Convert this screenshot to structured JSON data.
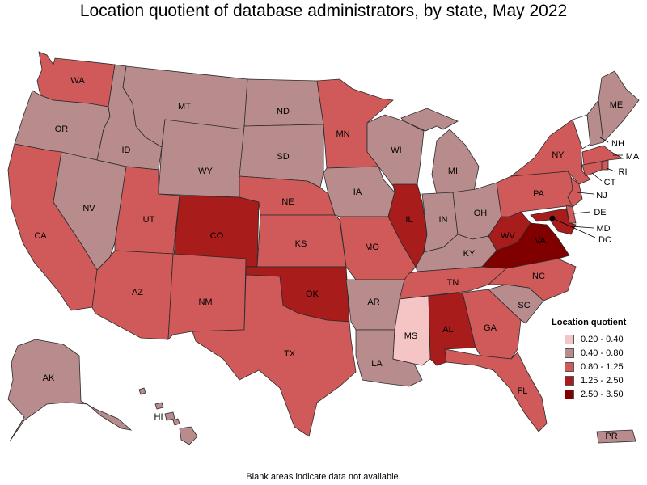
{
  "title": "Location quotient of database administrators, by state, May 2022",
  "footnote": "Blank areas indicate data not available.",
  "legend": {
    "title": "Location quotient",
    "items": [
      {
        "label": "0.20 - 0.40",
        "color": "#f5c4c4"
      },
      {
        "label": "0.40 - 0.80",
        "color": "#b88c8c"
      },
      {
        "label": "0.80 - 1.25",
        "color": "#d05a5a"
      },
      {
        "label": "1.25 - 2.50",
        "color": "#a81c1c"
      },
      {
        "label": "2.50 - 3.50",
        "color": "#800000"
      }
    ]
  },
  "colors": {
    "c1": "#f5c4c4",
    "c2": "#b88c8c",
    "c3": "#d05a5a",
    "c4": "#a81c1c",
    "c5": "#800000",
    "blank": "#ffffff"
  },
  "states": {
    "WA": "c3",
    "OR": "c2",
    "CA": "c3",
    "NV": "c2",
    "ID": "c2",
    "MT": "c2",
    "WY": "c2",
    "UT": "c3",
    "AZ": "c3",
    "CO": "c4",
    "NM": "c3",
    "ND": "c2",
    "SD": "c2",
    "NE": "c3",
    "KS": "c3",
    "OK": "c4",
    "TX": "c3",
    "MN": "c3",
    "IA": "c2",
    "MO": "c3",
    "AR": "c2",
    "LA": "c2",
    "WI": "c2",
    "IL": "c4",
    "MI": "c2",
    "IN": "c2",
    "OH": "c2",
    "KY": "c2",
    "TN": "c3",
    "MS": "c1",
    "AL": "c4",
    "GA": "c3",
    "FL": "c3",
    "SC": "c2",
    "NC": "c3",
    "VA": "c5",
    "WV": "c4",
    "PA": "c3",
    "NY": "c3",
    "VT": "blank",
    "NH": "c2",
    "ME": "c2",
    "MA": "c3",
    "RI": "c3",
    "CT": "c3",
    "NJ": "c3",
    "DE": "c3",
    "MD": "c4",
    "DC": "c5",
    "AK": "c2",
    "HI": "c2",
    "PR": "c2"
  },
  "labels": [
    "WA",
    "OR",
    "CA",
    "NV",
    "ID",
    "MT",
    "WY",
    "UT",
    "AZ",
    "CO",
    "NM",
    "ND",
    "SD",
    "NE",
    "KS",
    "OK",
    "TX",
    "MN",
    "IA",
    "MO",
    "AR",
    "LA",
    "WI",
    "IL",
    "MI",
    "IN",
    "OH",
    "KY",
    "TN",
    "MS",
    "AL",
    "GA",
    "FL",
    "SC",
    "NC",
    "VA",
    "WV",
    "PA",
    "NY",
    "ME",
    "NH",
    "MA",
    "RI",
    "CT",
    "NJ",
    "DE",
    "MD",
    "DC",
    "AK",
    "HI",
    "PR"
  ]
}
